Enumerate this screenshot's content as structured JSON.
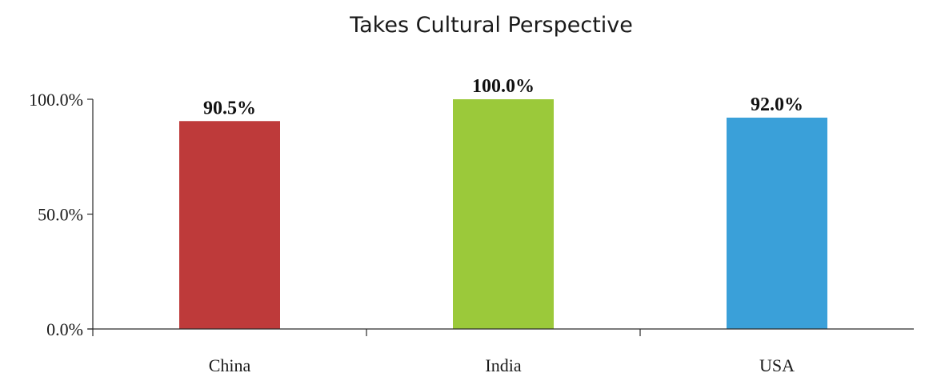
{
  "chart_data": {
    "type": "bar",
    "title": "Takes Cultural Perspective",
    "categories": [
      "China",
      "India",
      "USA"
    ],
    "values": [
      90.5,
      100.0,
      92.0
    ],
    "data_labels": [
      "90.5%",
      "100.0%",
      "92.0%"
    ],
    "colors": [
      "#be3a3a",
      "#9bc93a",
      "#3aa0d9"
    ],
    "ylim": [
      0,
      100
    ],
    "yticks": [
      0,
      50,
      100
    ],
    "ytick_labels": [
      "0.0%",
      "50.0%",
      "100.0%"
    ],
    "xlabel": "",
    "ylabel": "",
    "grid": false,
    "legend": "none"
  }
}
